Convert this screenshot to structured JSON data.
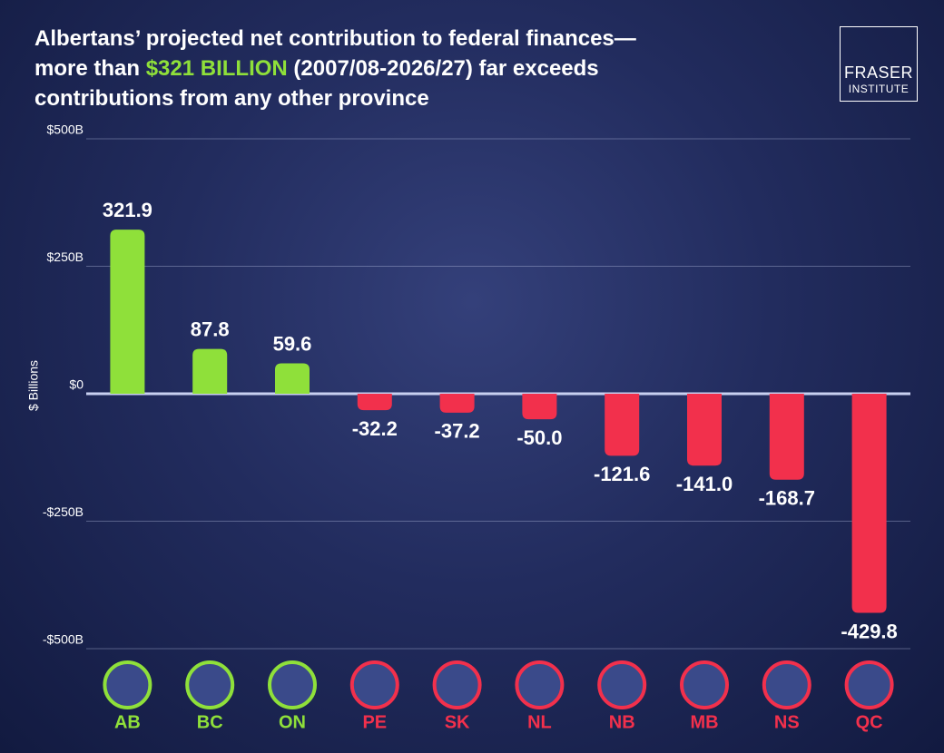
{
  "chart_data": {
    "type": "bar",
    "title": [
      "Albertans’ projected net contribution to federal finances—",
      "more than ",
      "$321 BILLION",
      " (2007/08-2026/27) far exceeds",
      "contributions from any other province"
    ],
    "logo": [
      "FRASER",
      "INSTITUTE"
    ],
    "ylabel": "$ Billions",
    "categories": [
      "AB",
      "BC",
      "ON",
      "PE",
      "SK",
      "NL",
      "NB",
      "MB",
      "NS",
      "QC"
    ],
    "values": [
      321.9,
      87.8,
      59.6,
      -32.2,
      -37.2,
      -50.0,
      -121.6,
      -141.0,
      -168.7,
      -429.8
    ],
    "value_labels": [
      "321.9",
      "87.8",
      "59.6",
      "-32.2",
      "-37.2",
      "-50.0",
      "-121.6",
      "-141.0",
      "-168.7",
      "-429.8"
    ],
    "colors": [
      "#8fe03a",
      "#8fe03a",
      "#8fe03a",
      "#f2304c",
      "#f2304c",
      "#f2304c",
      "#f2304c",
      "#f2304c",
      "#f2304c",
      "#f2304c"
    ],
    "ylim": [
      -500,
      500
    ],
    "yticks": [
      {
        "value": 500,
        "label": "$500B"
      },
      {
        "value": 250,
        "label": "$250B"
      },
      {
        "value": 0,
        "label": "$0"
      },
      {
        "value": -250,
        "label": "-$250B"
      },
      {
        "value": -500,
        "label": "-$500B"
      }
    ],
    "grid": true
  }
}
